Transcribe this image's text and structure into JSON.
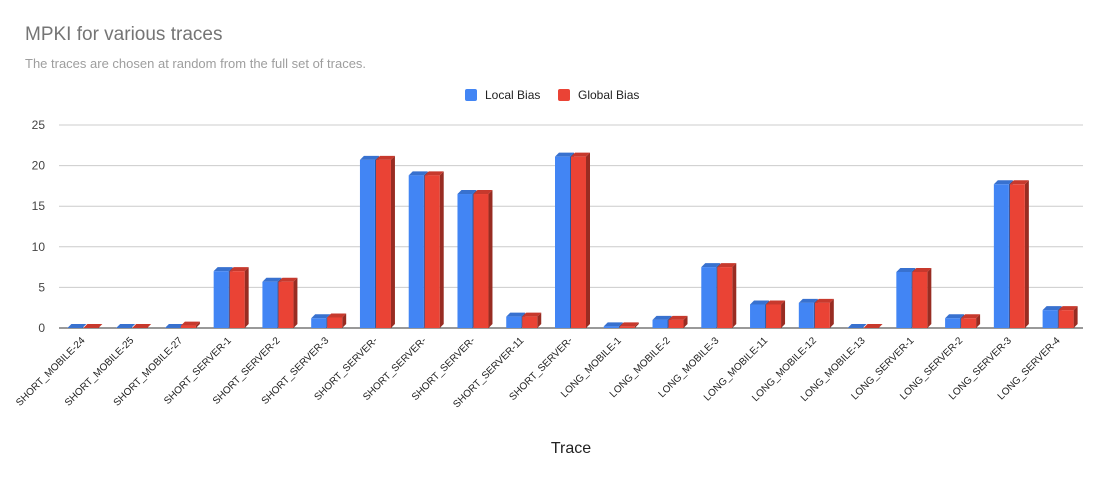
{
  "chart_data": {
    "type": "bar",
    "title": "MPKI for various traces",
    "subtitle": "The traces are chosen at random from the full set of traces.",
    "xlabel": "Trace",
    "ylabel": "",
    "ylim": [
      0,
      25
    ],
    "yticks": [
      0,
      5,
      10,
      15,
      20,
      25
    ],
    "grid": true,
    "legend_position": "top",
    "categories": [
      "SHORT_MOBILE-24",
      "SHORT_MOBILE-25",
      "SHORT_MOBILE-27",
      "SHORT_SERVER-1",
      "SHORT_SERVER-2",
      "SHORT_SERVER-3",
      "SHORT_SERVER-",
      "SHORT_SERVER-",
      "SHORT_SERVER-",
      "SHORT_SERVER-11",
      "SHORT_SERVER-",
      "LONG_MOBILE-1",
      "LONG_MOBILE-2",
      "LONG_MOBILE-3",
      "LONG_MOBILE-11",
      "LONG_MOBILE-12",
      "LONG_MOBILE-13",
      "LONG_SERVER-1",
      "LONG_SERVER-2",
      "LONG_SERVER-3",
      "LONG_SERVER-4"
    ],
    "series": [
      {
        "name": "Local Bias",
        "color": "#4285f4",
        "values": [
          0.0,
          0.0,
          0.0,
          7.0,
          5.7,
          1.2,
          20.7,
          18.8,
          16.5,
          1.4,
          21.1,
          0.2,
          1.0,
          7.5,
          2.9,
          3.1,
          0.0,
          6.9,
          1.2,
          17.7,
          2.2
        ]
      },
      {
        "name": "Global Bias",
        "color": "#ea4335",
        "values": [
          0.0,
          0.0,
          0.3,
          7.0,
          5.7,
          1.3,
          20.7,
          18.8,
          16.5,
          1.4,
          21.1,
          0.2,
          1.0,
          7.5,
          2.9,
          3.1,
          0.0,
          6.9,
          1.2,
          17.7,
          2.2
        ]
      }
    ]
  }
}
